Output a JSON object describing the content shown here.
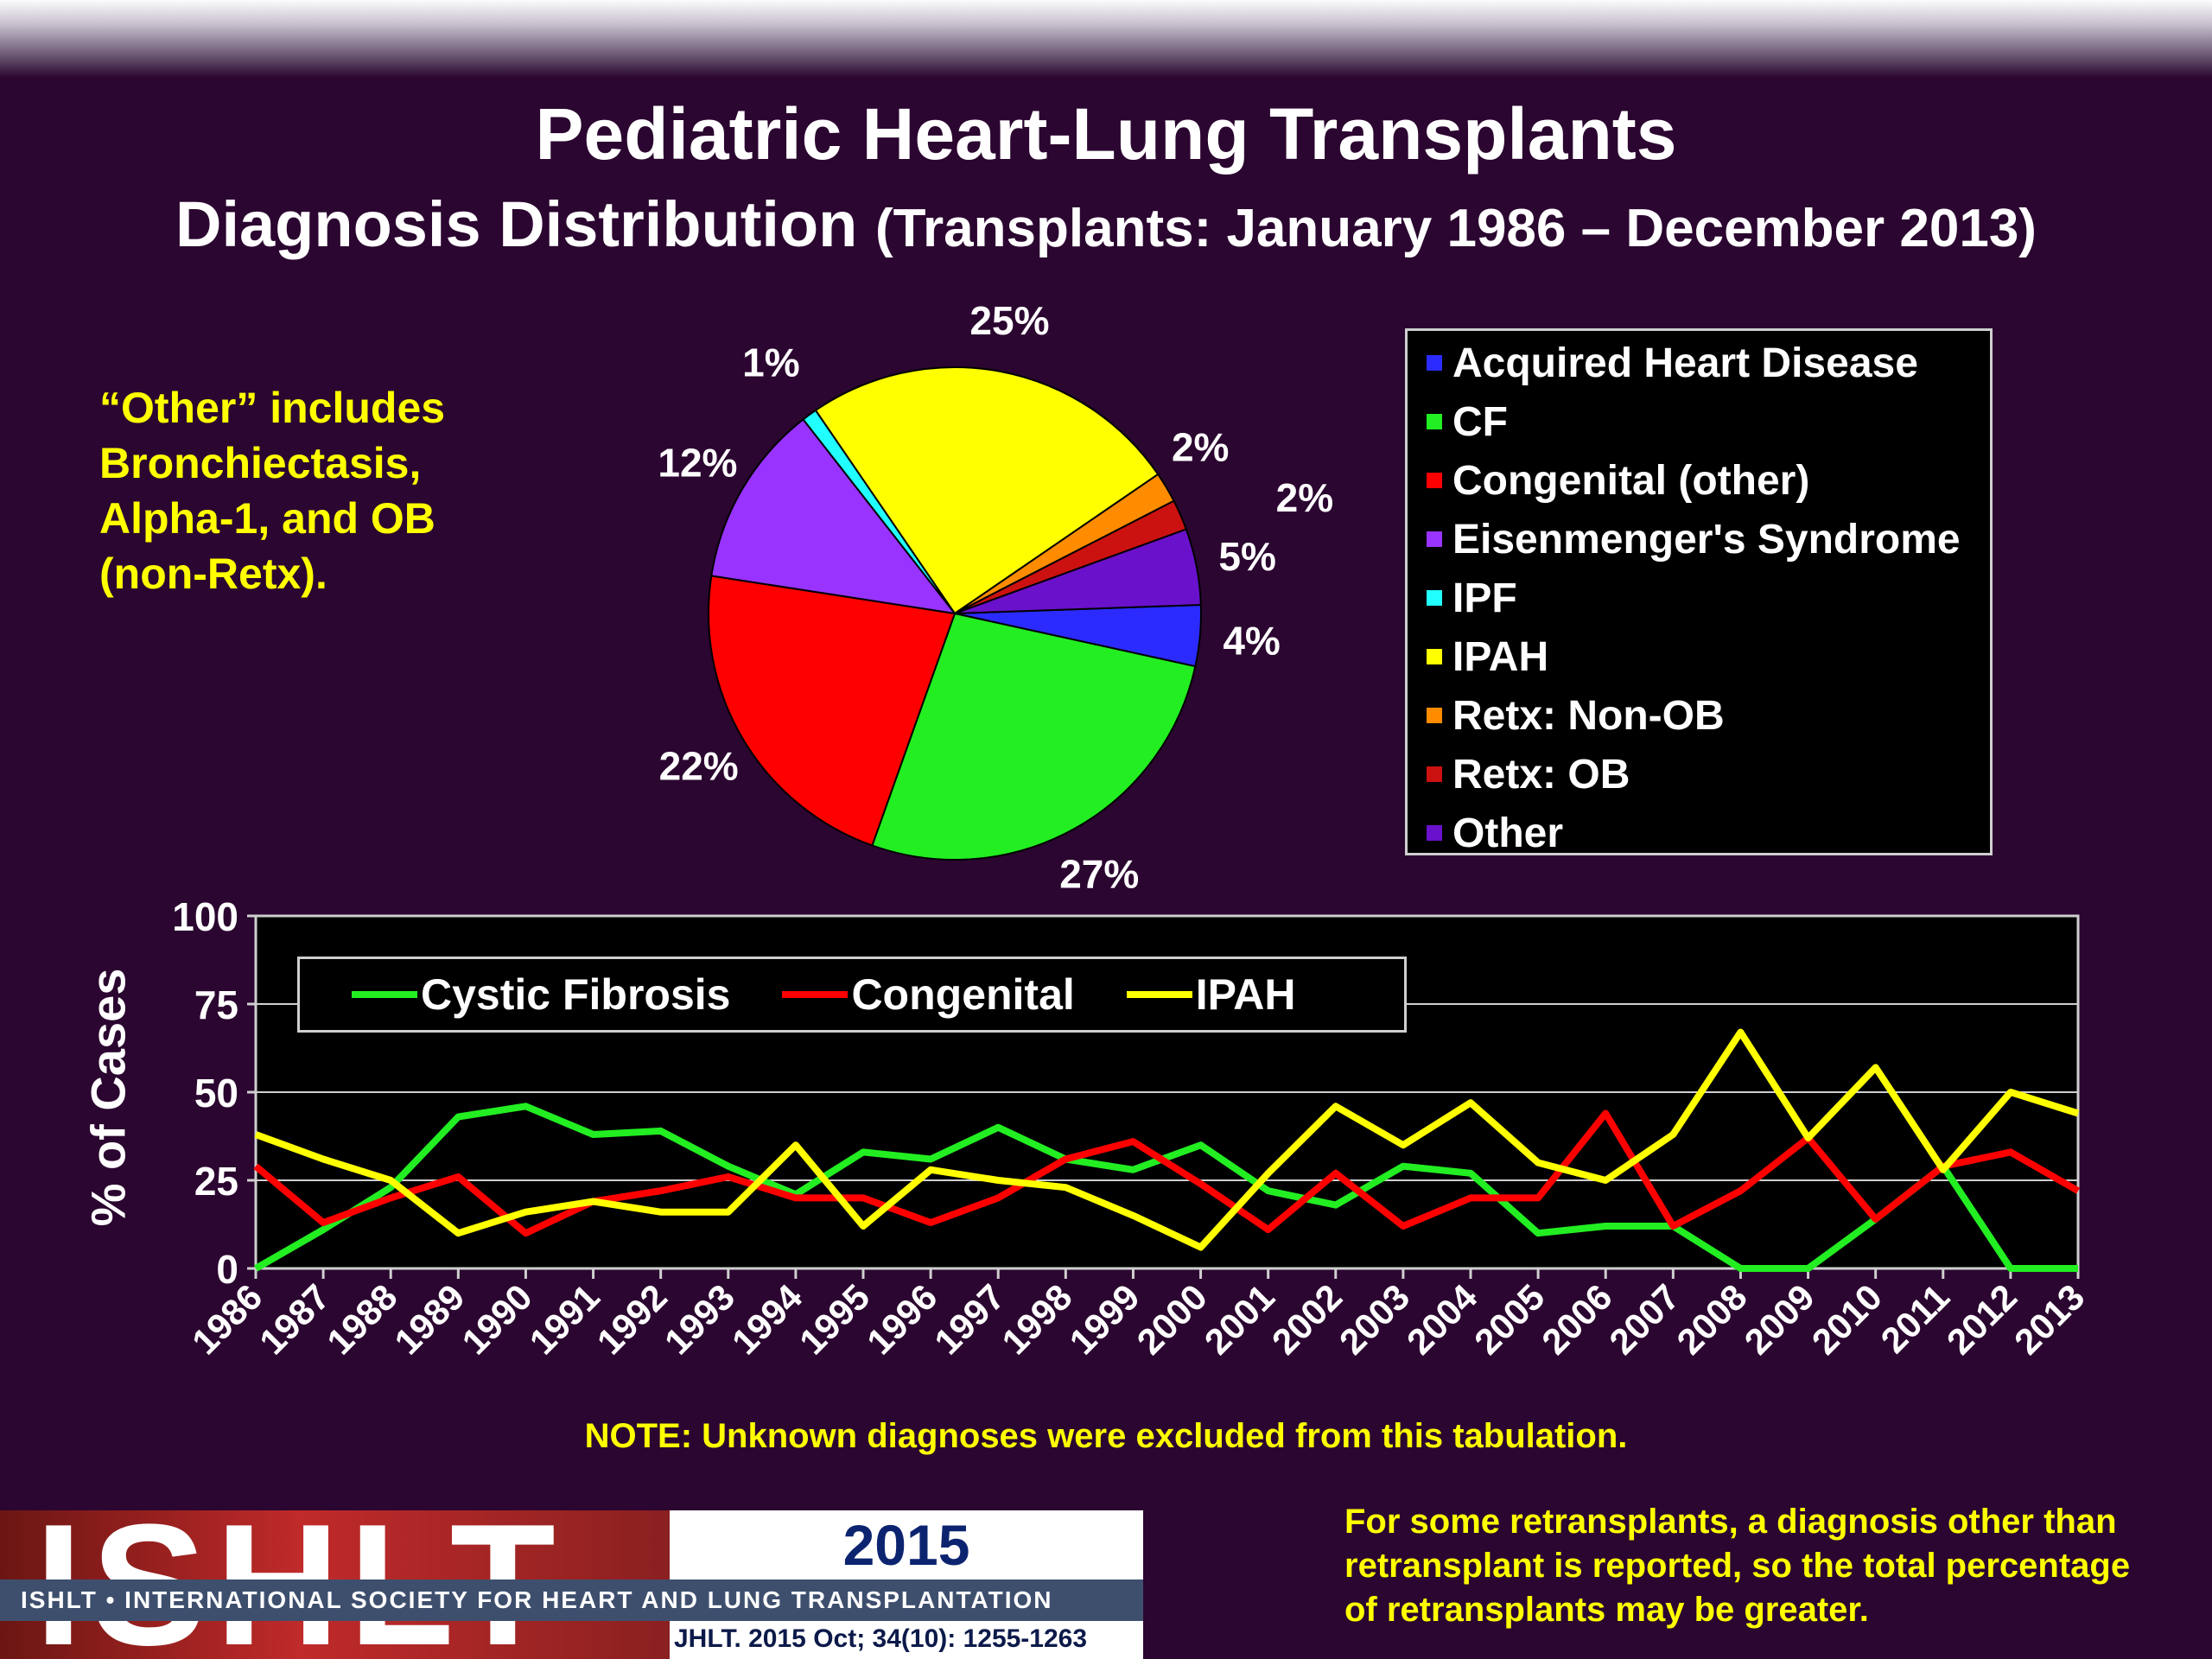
{
  "title": "Pediatric Heart-Lung Transplants",
  "subtitle_main": "Diagnosis Distribution",
  "subtitle_paren": "(Transplants: January 1986 – December 2013)",
  "other_note": "“Other” includes\nBronchiectasis,\nAlpha-1, and OB\n(non-Retx).",
  "footnote": "NOTE: Unknown diagnoses were excluded from this tabulation.",
  "retx_note": "For some retransplants, a diagnosis other than\nretransplant is reported, so the total percentage\nof retransplants may be greater.",
  "logo": {
    "word": "ISHLT",
    "year": "2015",
    "band": "ISHLT • INTERNATIONAL SOCIETY FOR HEART AND LUNG TRANSPLANTATION",
    "citation": "JHLT. 2015 Oct; 34(10): 1255-1263"
  },
  "chart_data": [
    {
      "type": "pie",
      "slices": [
        {
          "name": "Acquired Heart Disease",
          "label": "4%",
          "value": 4,
          "color": "#2b2bff"
        },
        {
          "name": "CF",
          "label": "27%",
          "value": 27,
          "color": "#22ee22"
        },
        {
          "name": "Congenital (other)",
          "label": "22%",
          "value": 22,
          "color": "#ff0000"
        },
        {
          "name": "Eisenmenger's Syndrome",
          "label": "12%",
          "value": 12,
          "color": "#9933ff"
        },
        {
          "name": "IPF",
          "label": "1%",
          "value": 1,
          "color": "#22ffff"
        },
        {
          "name": "IPAH",
          "label": "25%",
          "value": 25,
          "color": "#ffff00"
        },
        {
          "name": "Retx: Non-OB",
          "label": "2%",
          "value": 2,
          "color": "#ff8c00"
        },
        {
          "name": "Retx: OB",
          "label": "2%",
          "value": 2,
          "color": "#cc1111"
        },
        {
          "name": "Other",
          "label": "5%",
          "value": 5,
          "color": "#6a11cc"
        }
      ],
      "legend_position": "right"
    },
    {
      "type": "line",
      "ylabel": "% of Cases",
      "ylim": [
        0,
        100
      ],
      "yticks": [
        0,
        25,
        50,
        75,
        100
      ],
      "grid": true,
      "legend_position": "top-left",
      "x": [
        "1986",
        "1987",
        "1988",
        "1989",
        "1990",
        "1991",
        "1992",
        "1993",
        "1994",
        "1995",
        "1996",
        "1997",
        "1998",
        "1999",
        "2000",
        "2001",
        "2002",
        "2003",
        "2004",
        "2005",
        "2006",
        "2007",
        "2008",
        "2009",
        "2010",
        "2011",
        "2012",
        "2013"
      ],
      "series": [
        {
          "name": "Cystic Fibrosis",
          "color": "#22ee22",
          "values": [
            0,
            11,
            23,
            43,
            46,
            38,
            39,
            29,
            21,
            33,
            31,
            40,
            31,
            28,
            35,
            22,
            18,
            29,
            27,
            10,
            12,
            12,
            0,
            0,
            14,
            29,
            0,
            0
          ]
        },
        {
          "name": "Congenital",
          "color": "#ff0000",
          "values": [
            29,
            13,
            20,
            26,
            10,
            19,
            22,
            26,
            20,
            20,
            13,
            20,
            31,
            36,
            24,
            11,
            27,
            12,
            20,
            20,
            44,
            12,
            22,
            37,
            14,
            29,
            33,
            22
          ]
        },
        {
          "name": "IPAH",
          "color": "#ffff00",
          "values": [
            38,
            31,
            25,
            10,
            16,
            19,
            16,
            16,
            35,
            12,
            28,
            25,
            23,
            15,
            6,
            27,
            46,
            35,
            47,
            30,
            25,
            38,
            67,
            37,
            57,
            28,
            50,
            44
          ]
        }
      ]
    }
  ]
}
